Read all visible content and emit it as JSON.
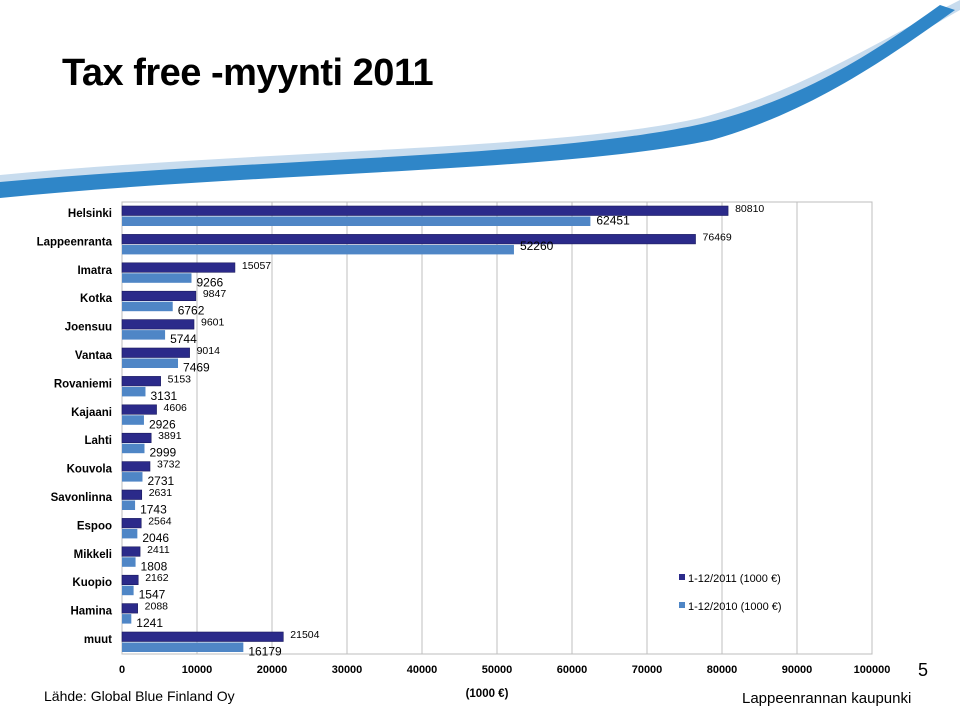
{
  "slide": {
    "title": "Tax free -myynti 2011",
    "source": "Lähde: Global Blue Finland Oy",
    "organization": "Lappeenrannan kaupunki",
    "page_number": "5"
  },
  "colors": {
    "series_2011": "#2b2a8a",
    "series_2010": "#4f86c6",
    "swoosh_dark": "#2f86c8",
    "swoosh_light": "#c8dcee"
  },
  "chart_data": {
    "type": "bar",
    "orientation": "horizontal",
    "categories": [
      "Helsinki",
      "Lappeenranta",
      "Imatra",
      "Kotka",
      "Joensuu",
      "Vantaa",
      "Rovaniemi",
      "Kajaani",
      "Lahti",
      "Kouvola",
      "Savonlinna",
      "Espoo",
      "Mikkeli",
      "Kuopio",
      "Hamina",
      "muut"
    ],
    "series": [
      {
        "name": "1-12/2011 (1000 €)",
        "color": "#2b2a8a",
        "values": [
          80810,
          76469,
          15057,
          9847,
          9601,
          9014,
          5153,
          4606,
          3891,
          3732,
          2631,
          2564,
          2411,
          2162,
          2088,
          21504
        ]
      },
      {
        "name": "1-12/2010 (1000 €)",
        "color": "#4f86c6",
        "values": [
          62451,
          52260,
          9266,
          6762,
          5744,
          7469,
          3131,
          2926,
          2999,
          2731,
          1743,
          2046,
          1808,
          1547,
          1241,
          16179
        ]
      }
    ],
    "xlabel": "(1000 €)",
    "xlim": [
      0,
      100000
    ],
    "xticks": [
      "0",
      "10000",
      "20000",
      "30000",
      "40000",
      "50000",
      "60000",
      "70000",
      "80000",
      "90000",
      "100000"
    ],
    "grid": true,
    "legend": "bottom-right"
  }
}
